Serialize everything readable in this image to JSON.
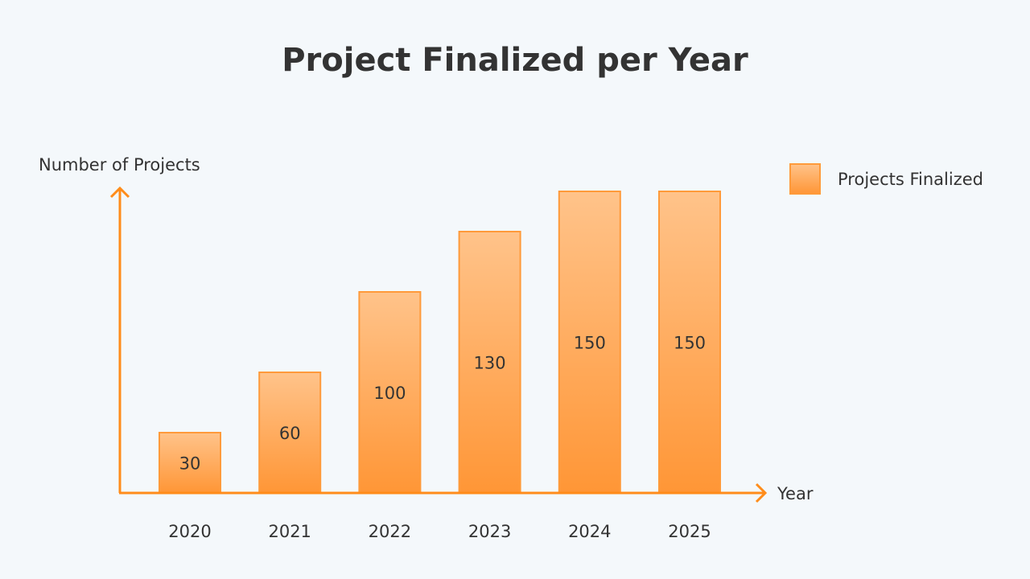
{
  "chart_data": {
    "type": "bar",
    "title": "Project Finalized per Year",
    "xlabel": "Year",
    "ylabel": "Number of Projects",
    "categories": [
      "2020",
      "2021",
      "2022",
      "2023",
      "2024",
      "2025"
    ],
    "series": [
      {
        "name": "Projects Finalized",
        "values": [
          30,
          60,
          100,
          130,
          150,
          150
        ]
      }
    ],
    "data_labels": [
      "30",
      "60",
      "100",
      "130",
      "150",
      "150"
    ],
    "ylim": [
      0,
      190
    ],
    "grid": false,
    "legend": "top-right",
    "colors": {
      "bar_top": "#ffc38a",
      "bar_bottom": "#ff9636",
      "bar_border": "#ff9a3a",
      "axis": "#ff8c1a"
    }
  }
}
